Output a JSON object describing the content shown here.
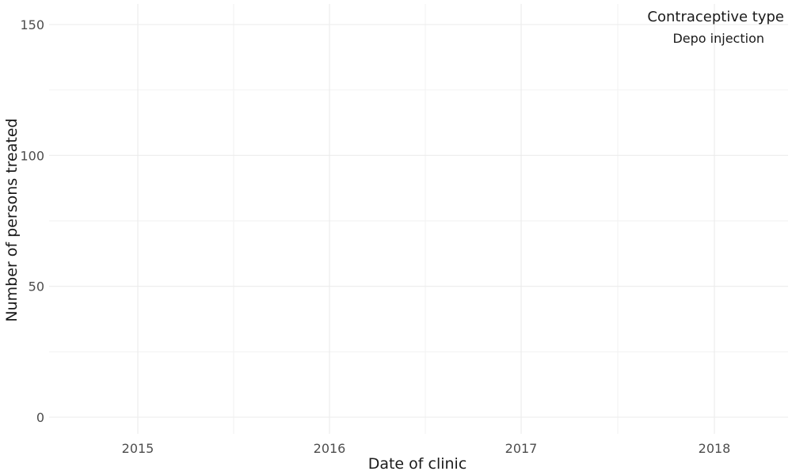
{
  "chart_data": {
    "type": "line",
    "title": "",
    "xlabel": "Date of clinic",
    "ylabel": "Number of persons treated",
    "x_ticks": [
      "2015",
      "2016",
      "2017",
      "2018"
    ],
    "y_ticks": [
      0,
      50,
      100,
      150
    ],
    "ylim": [
      0,
      150
    ],
    "grid": true,
    "legend": {
      "title": "Contraceptive type",
      "position": "top-right",
      "entries": [
        "Depo injection"
      ]
    },
    "series": [
      {
        "name": "Depo injection",
        "values": []
      }
    ]
  }
}
